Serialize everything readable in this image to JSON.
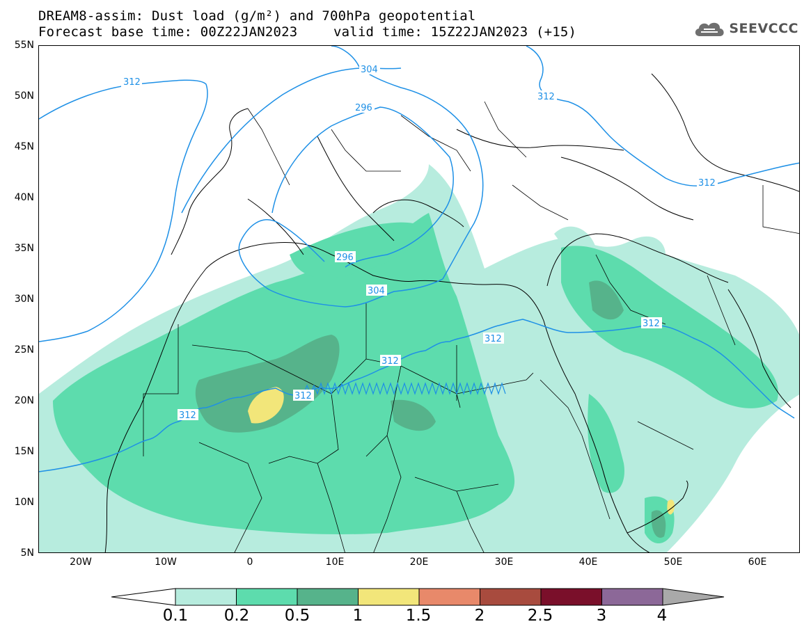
{
  "title": {
    "line1": "DREAM8-assim: Dust load (g/m²) and 700hPa geopotential",
    "line2_base": "Forecast base time: 00Z22JAN2023",
    "line2_valid": "valid time: 15Z22JAN2023 (+15)"
  },
  "logo": {
    "text": "SEEVCCC",
    "icon": "cloud-icon"
  },
  "map": {
    "lat_labels": [
      "55N",
      "50N",
      "45N",
      "40N",
      "35N",
      "30N",
      "25N",
      "20N",
      "15N",
      "10N",
      "5N"
    ],
    "lon_labels": [
      "20W",
      "10W",
      "0",
      "10E",
      "20E",
      "30E",
      "40E",
      "50E",
      "60E"
    ],
    "contour_labels": [
      "312",
      "304",
      "296",
      "312",
      "296",
      "304",
      "312",
      "312",
      "312",
      "312",
      "312"
    ],
    "contour_color": "#1e90e6",
    "lat_range": [
      5,
      55
    ],
    "lon_range": [
      -25,
      65
    ]
  },
  "colorbar": {
    "levels": [
      "0.1",
      "0.2",
      "0.5",
      "1",
      "1.5",
      "2",
      "2.5",
      "3",
      "4"
    ],
    "colors": [
      "#b7ecde",
      "#5ddcad",
      "#56b38b",
      "#f2e67a",
      "#e8896a",
      "#a84b3e",
      "#7a0f2a",
      "#8c6898",
      "#a9a9a9"
    ]
  }
}
